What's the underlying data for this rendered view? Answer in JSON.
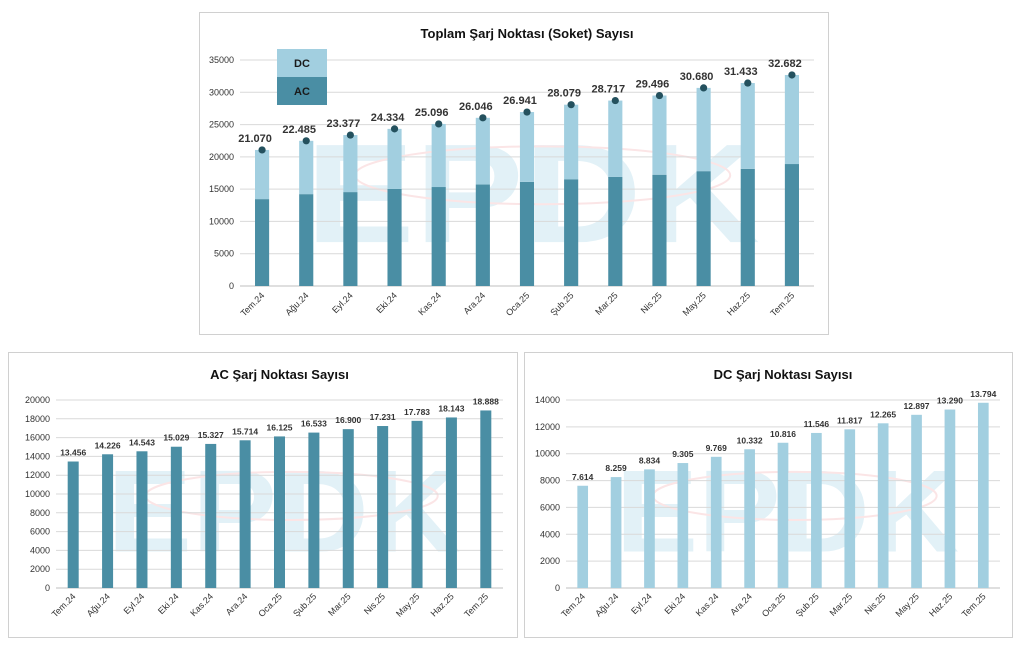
{
  "colors": {
    "ac": "#4a8ea4",
    "dc": "#a2cfe0",
    "dot": "#24515e",
    "grid": "#d9d9d9",
    "axis": "#bfbfbf",
    "watermark_blue": "#e2f1f7",
    "watermark_red": "#fbe5e6"
  },
  "watermark": "EPDK",
  "charts": {
    "total": {
      "chart_data": {
        "type": "bar",
        "stacked": true,
        "title": "Toplam Şarj Noktası (Soket) Sayısı",
        "categories": [
          "Tem.24",
          "Ağu.24",
          "Eyl.24",
          "Eki.24",
          "Kas.24",
          "Ara.24",
          "Oca.25",
          "Şub.25",
          "Mar.25",
          "Nis.25",
          "May.25",
          "Haz.25",
          "Tem.25"
        ],
        "series": [
          {
            "name": "AC",
            "values": [
              13456,
              14226,
              14543,
              15029,
              15327,
              15714,
              16125,
              16533,
              16900,
              17231,
              17783,
              18143,
              18888
            ]
          },
          {
            "name": "DC",
            "values": [
              7614,
              8259,
              8834,
              9305,
              9769,
              10332,
              10816,
              11546,
              11817,
              12265,
              12897,
              13290,
              13794
            ]
          }
        ],
        "totals": [
          21070,
          22485,
          23377,
          24334,
          25096,
          26046,
          26941,
          28079,
          28717,
          29496,
          30680,
          31433,
          32682
        ],
        "labels": [
          "21.070",
          "22.485",
          "23.377",
          "24.334",
          "25.096",
          "26.046",
          "26.941",
          "28.079",
          "28.717",
          "29.496",
          "30.680",
          "31.433",
          "32.682"
        ],
        "ylim": [
          0,
          35000
        ],
        "yticks": [
          0,
          5000,
          10000,
          15000,
          20000,
          25000,
          30000,
          35000
        ],
        "grid": true,
        "legend": "top-left"
      }
    },
    "ac": {
      "chart_data": {
        "type": "bar",
        "title": "AC Şarj Noktası Sayısı",
        "categories": [
          "Tem.24",
          "Ağu.24",
          "Eyl.24",
          "Eki.24",
          "Kas.24",
          "Ara.24",
          "Oca.25",
          "Şub.25",
          "Mar.25",
          "Nis.25",
          "May.25",
          "Haz.25",
          "Tem.25"
        ],
        "values": [
          13456,
          14226,
          14543,
          15029,
          15327,
          15714,
          16125,
          16533,
          16900,
          17231,
          17783,
          18143,
          18888
        ],
        "labels": [
          "13.456",
          "14.226",
          "14.543",
          "15.029",
          "15.327",
          "15.714",
          "16.125",
          "16.533",
          "16.900",
          "17.231",
          "17.783",
          "18.143",
          "18.888"
        ],
        "ylim": [
          0,
          20000
        ],
        "yticks": [
          0,
          2000,
          4000,
          6000,
          8000,
          10000,
          12000,
          14000,
          16000,
          18000,
          20000
        ],
        "grid": true
      }
    },
    "dc": {
      "chart_data": {
        "type": "bar",
        "title": "DC Şarj Noktası Sayısı",
        "categories": [
          "Tem.24",
          "Ağu.24",
          "Eyl.24",
          "Eki.24",
          "Kas.24",
          "Ara.24",
          "Oca.25",
          "Şub.25",
          "Mar.25",
          "Nis.25",
          "May.25",
          "Haz.25",
          "Tem.25"
        ],
        "values": [
          7614,
          8259,
          8834,
          9305,
          9769,
          10332,
          10816,
          11546,
          11817,
          12265,
          12897,
          13290,
          13794
        ],
        "labels": [
          "7.614",
          "8.259",
          "8.834",
          "9.305",
          "9.769",
          "10.332",
          "10.816",
          "11.546",
          "11.817",
          "12.265",
          "12.897",
          "13.290",
          "13.794"
        ],
        "ylim": [
          0,
          14000
        ],
        "yticks": [
          0,
          2000,
          4000,
          6000,
          8000,
          10000,
          12000,
          14000
        ],
        "grid": true
      }
    }
  }
}
